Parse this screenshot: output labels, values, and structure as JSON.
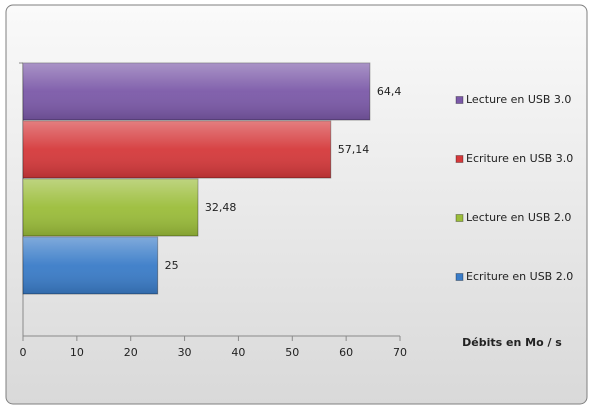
{
  "chart_data": {
    "type": "hbar",
    "x_label": "Débits en Mo / s",
    "series": [
      {
        "name": "Lecture en USB 3.0",
        "color": "#7b59a8",
        "values": [
          64.4
        ],
        "value_labels": [
          "64,4"
        ]
      },
      {
        "name": "Ecriture en USB 3.0",
        "color": "#d5393b",
        "values": [
          57.14
        ],
        "value_labels": [
          "57,14"
        ]
      },
      {
        "name": "Lecture en USB 2.0",
        "color": "#9bbd3a",
        "values": [
          32.48
        ],
        "value_labels": [
          "32,48"
        ]
      },
      {
        "name": "Ecriture en USB 2.0",
        "color": "#3a7cc8",
        "values": [
          25
        ],
        "value_labels": [
          "25"
        ]
      }
    ],
    "xlim": [
      0,
      70
    ],
    "xticks": [
      0,
      10,
      20,
      30,
      40,
      50,
      60,
      70
    ],
    "legend": "right"
  }
}
